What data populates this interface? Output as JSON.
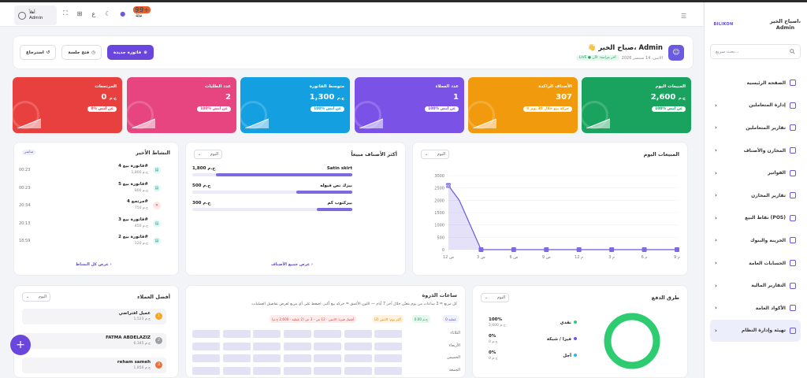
{
  "sidebar": {
    "user_line1": "اصباح الخير،",
    "user_line2": "Admin",
    "logo": "BILIKON",
    "search_placeholder": "بحث سريع...",
    "items": [
      {
        "label": "الصفحة الرئيسية",
        "chevron": false,
        "active": false
      },
      {
        "label": "إدارة المتعاملين",
        "chevron": true,
        "active": false
      },
      {
        "label": "تقارير المتعاملين",
        "chevron": true,
        "active": false
      },
      {
        "label": "المخازن والأصناف",
        "chevron": true,
        "active": false
      },
      {
        "label": "الفواتير",
        "chevron": true,
        "active": false
      },
      {
        "label": "تقارير المخازن",
        "chevron": true,
        "active": false
      },
      {
        "label": "نقاط البيع (POS)",
        "chevron": true,
        "active": false
      },
      {
        "label": "الخزينة والبنوك",
        "chevron": true,
        "active": false
      },
      {
        "label": "الحسابات العامة",
        "chevron": true,
        "active": false
      },
      {
        "label": "التقارير المالية",
        "chevron": true,
        "active": false
      },
      {
        "label": "الأكواد العامة",
        "chevron": true,
        "active": false
      },
      {
        "label": "تهيئة وإدارة النظام",
        "chevron": true,
        "active": true
      }
    ]
  },
  "header": {
    "admin_greet": "أهلاً",
    "admin_name": "Admin",
    "notifications": "99+",
    "lang": "ع"
  },
  "welcome": {
    "title": "صباح الخير، Admin",
    "emoji": "👋",
    "date": "الاثنين، 14 سبتمبر 2026",
    "live": "LIVE ● آخر مزامنة: الآن",
    "btn_new_invoice": "فاتورة جديدة",
    "btn_open_session": "فتح جلسة",
    "btn_return": "استرجاع"
  },
  "cards": [
    {
      "label": "المبيعات اليوم",
      "value": "2,600",
      "unit": "ج.م",
      "pill": "100% عن أمس",
      "color": "#1aa35e"
    },
    {
      "label": "الأصناف الراكدة",
      "value": "307",
      "unit": "",
      "pill": "⊘ حركة بيع خلال 30 يوم",
      "color": "#f29a0e"
    },
    {
      "label": "عدد العملاء",
      "value": "1",
      "unit": "",
      "pill": "100% عن أمس",
      "color": "#7b52e6"
    },
    {
      "label": "متوسط الفاتورة",
      "value": "1,300",
      "unit": "ج.م",
      "pill": "100% عن أمس",
      "color": "#139fe0"
    },
    {
      "label": "عدد الطلبات",
      "value": "2",
      "unit": "",
      "pill": "100% عن أمس",
      "color": "#e6457f"
    },
    {
      "label": "المرتجعات",
      "value": "0",
      "unit": "ج.م",
      "pill": "0% عن أمس",
      "color": "#e8403e"
    }
  ],
  "sales_today": {
    "title": "المبيعات اليوم",
    "range": "اليوم",
    "peak_label": "2600"
  },
  "chart_data": {
    "type": "line",
    "title": "المبيعات اليوم",
    "x": [
      "12 ص",
      "1 ص",
      "2 ص",
      "3 ص",
      "4 ص",
      "5 ص",
      "6 ص",
      "7 ص",
      "8 ص",
      "9 ص",
      "10 ص",
      "11 ص",
      "12 م",
      "1 م",
      "2 م",
      "3 م",
      "4 م",
      "5 م",
      "6 م",
      "7 م",
      "8 م",
      "9 م"
    ],
    "xticks": [
      "12 ص",
      "3 ص",
      "6 ص",
      "9 ص",
      "12 م",
      "3 م",
      "6 م",
      "9 م"
    ],
    "series": [
      {
        "values": [
          2600,
          2000,
          1000,
          0,
          0,
          0,
          0,
          0,
          0,
          0,
          0,
          0,
          0,
          0,
          0,
          0,
          0,
          0,
          0,
          0,
          0,
          0
        ]
      }
    ],
    "yticks": [
      "0",
      "500",
      "1000",
      "1500",
      "2000",
      "2500",
      "3000"
    ],
    "ylim": [
      0,
      3000
    ],
    "color": "#6a5ae0"
  },
  "top_products": {
    "title": "أكثر الأصناف مبيعاً",
    "range": "اليوم",
    "link": "عرض جميع الأصناف ›",
    "items": [
      {
        "name": "Satin skirt",
        "value": "1,800 ج.م",
        "pct": 0.85
      },
      {
        "name": "بيزك نص فيوله",
        "value": "500 ج.م",
        "pct": 0.35
      },
      {
        "name": "بيزكتوب كم",
        "value": "300 ج.م",
        "pct": 0.22
      }
    ]
  },
  "activity": {
    "title": "النشاط الأخير",
    "badge": "مباشر",
    "link": "عرض كل النشاط ›",
    "items": [
      {
        "title": "فاتورة بيع 4#",
        "sub": "1,800 ج.م",
        "time": "00:23",
        "type": "sale"
      },
      {
        "title": "فاتورة بيع 5#",
        "sub": "800 ج.م",
        "time": "00:23",
        "type": "sale"
      },
      {
        "title": "مرتجع 4#",
        "sub": "750 ج.م",
        "time": "20:34",
        "type": "return"
      },
      {
        "title": "فاتورة بيع 3#",
        "sub": "450 ج.م",
        "time": "20:13",
        "type": "sale"
      },
      {
        "title": "فاتورة بيع 2#",
        "sub": "120 ج.م",
        "time": "18:59",
        "type": "sale"
      }
    ]
  },
  "payments": {
    "title": "طرق الدفع",
    "range": "اليوم",
    "items": [
      {
        "name": "نقدي",
        "pct": "100%",
        "amount": "2,600 ج.م",
        "color": "#2ecc71"
      },
      {
        "name": "فيزا / شبكة",
        "pct": "0%",
        "amount": "0 ج.م",
        "color": "#7b52e6"
      },
      {
        "name": "آجل",
        "pct": "0%",
        "amount": "0 ج.م",
        "color": "#29b6f6"
      }
    ]
  },
  "peak_hours": {
    "title": "ساعات الذروة",
    "note": "كل مربع = 3 ساعات من يوم معيّن خلال آخر 7 أيام — اللون الأغمق = حركة بيع أكبر. اضغط على أي مربع لعرض تفاصيل العمليات.",
    "tags": [
      "0 عملية",
      "0.00 ج.م",
      "أكثر يوم: الاثنين (2)",
      "أفضل فترة: الاثنين · 12 ص – 3 ص (2 عملية · 2,600 ج.م)"
    ],
    "days": [
      "الثلاثاء",
      "الأربعاء",
      "الخميس",
      "الجمعة"
    ]
  },
  "customers": {
    "title": "أفضل العملاء",
    "range": "اليوم",
    "items": [
      {
        "name": "عميل افتراضي",
        "sub": "1,523 ج.م",
        "rank": "1",
        "color": "#f5a623"
      },
      {
        "name": "FATMA ABDELAZIZ",
        "sub": "6,345 ج.م",
        "rank": "2",
        "color": "#9aa0a6"
      },
      {
        "name": "reham sameh",
        "sub": "1,850 ج.م",
        "rank": "3",
        "color": "#e8743b"
      }
    ]
  }
}
